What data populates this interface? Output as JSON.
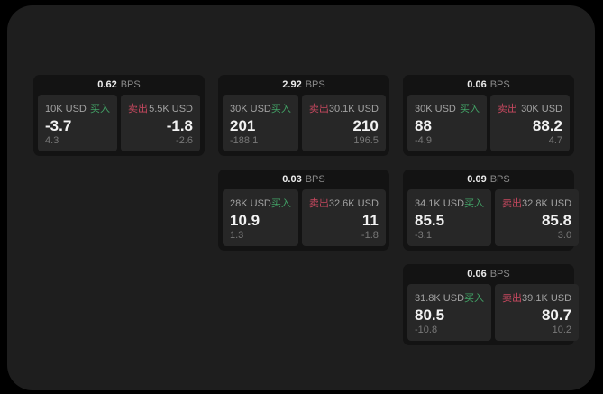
{
  "colors": {
    "surface": "#1e1e1e",
    "card": "#131313",
    "panel": "#272727",
    "buy_green": "#42a266",
    "sell_red": "#c7485f"
  },
  "labels": {
    "bps": "BPS",
    "buy": "买入",
    "sell": "卖出"
  },
  "cards": [
    {
      "bps": "0.62",
      "buy": {
        "amount": "10K USD",
        "value": "-3.7",
        "delta": "4.3"
      },
      "sell": {
        "amount": "5.5K USD",
        "value": "-1.8",
        "delta": "-2.6"
      }
    },
    {
      "bps": "2.92",
      "buy": {
        "amount": "30K USD",
        "value": "201",
        "delta": "-188.1"
      },
      "sell": {
        "amount": "30.1K USD",
        "value": "210",
        "delta": "196.5"
      }
    },
    {
      "bps": "0.06",
      "buy": {
        "amount": "30K USD",
        "value": "88",
        "delta": "-4.9"
      },
      "sell": {
        "amount": "30K USD",
        "value": "88.2",
        "delta": "4.7"
      }
    },
    {
      "bps": "0.03",
      "buy": {
        "amount": "28K USD",
        "value": "10.9",
        "delta": "1.3"
      },
      "sell": {
        "amount": "32.6K USD",
        "value": "11",
        "delta": "-1.8"
      }
    },
    {
      "bps": "0.09",
      "buy": {
        "amount": "34.1K USD",
        "value": "85.5",
        "delta": "-3.1"
      },
      "sell": {
        "amount": "32.8K USD",
        "value": "85.8",
        "delta": "3.0"
      }
    },
    {
      "bps": "0.06",
      "buy": {
        "amount": "31.8K USD",
        "value": "80.5",
        "delta": "-10.8"
      },
      "sell": {
        "amount": "39.1K USD",
        "value": "80.7",
        "delta": "10.2"
      }
    }
  ]
}
